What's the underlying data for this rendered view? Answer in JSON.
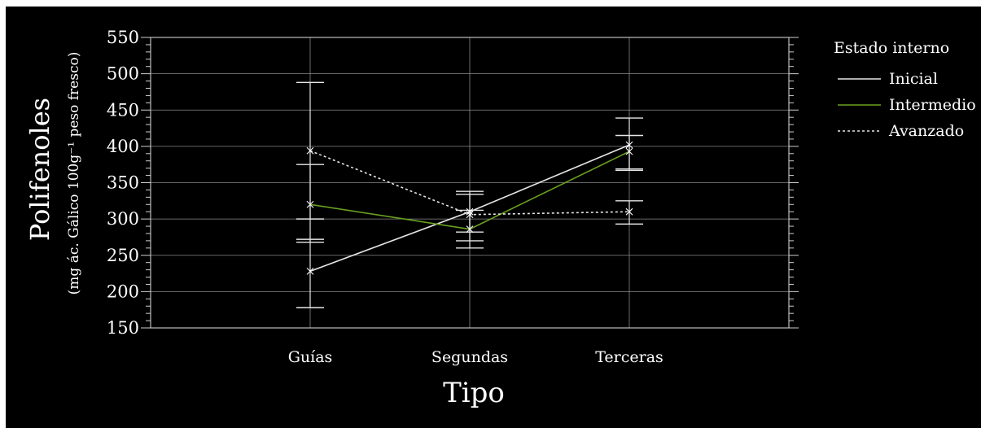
{
  "chart_data": {
    "type": "line",
    "xlabel": "Tipo",
    "ylabel": "Polifenoles",
    "ylabel_sub": "(mg ác. Gálico 100g⁻¹ peso fresco)",
    "categories": [
      "Guías",
      "Segundas",
      "Terceras"
    ],
    "ylim": [
      150,
      550
    ],
    "yticks": [
      "150",
      "200",
      "250",
      "300",
      "350",
      "400",
      "450",
      "500",
      "550"
    ],
    "grid": true,
    "legend_title": "Estado interno",
    "legend_position": "right",
    "series": [
      {
        "name": "Inicial",
        "color": "#e6e6e6",
        "dash": "solid",
        "values": [
          228,
          310,
          402
        ],
        "lower": [
          178,
          282,
          367
        ],
        "upper": [
          272,
          338,
          439
        ]
      },
      {
        "name": "Intermedio",
        "color": "#6aa121",
        "dash": "solid",
        "values": [
          320,
          286,
          393
        ],
        "lower": [
          268,
          260,
          369
        ],
        "upper": [
          375,
          312,
          415
        ]
      },
      {
        "name": "Avanzado",
        "color": "#e6e6e6",
        "dash": "dotted",
        "values": [
          394,
          306,
          310
        ],
        "lower": [
          300,
          270,
          293
        ],
        "upper": [
          488,
          334,
          325
        ]
      }
    ]
  }
}
